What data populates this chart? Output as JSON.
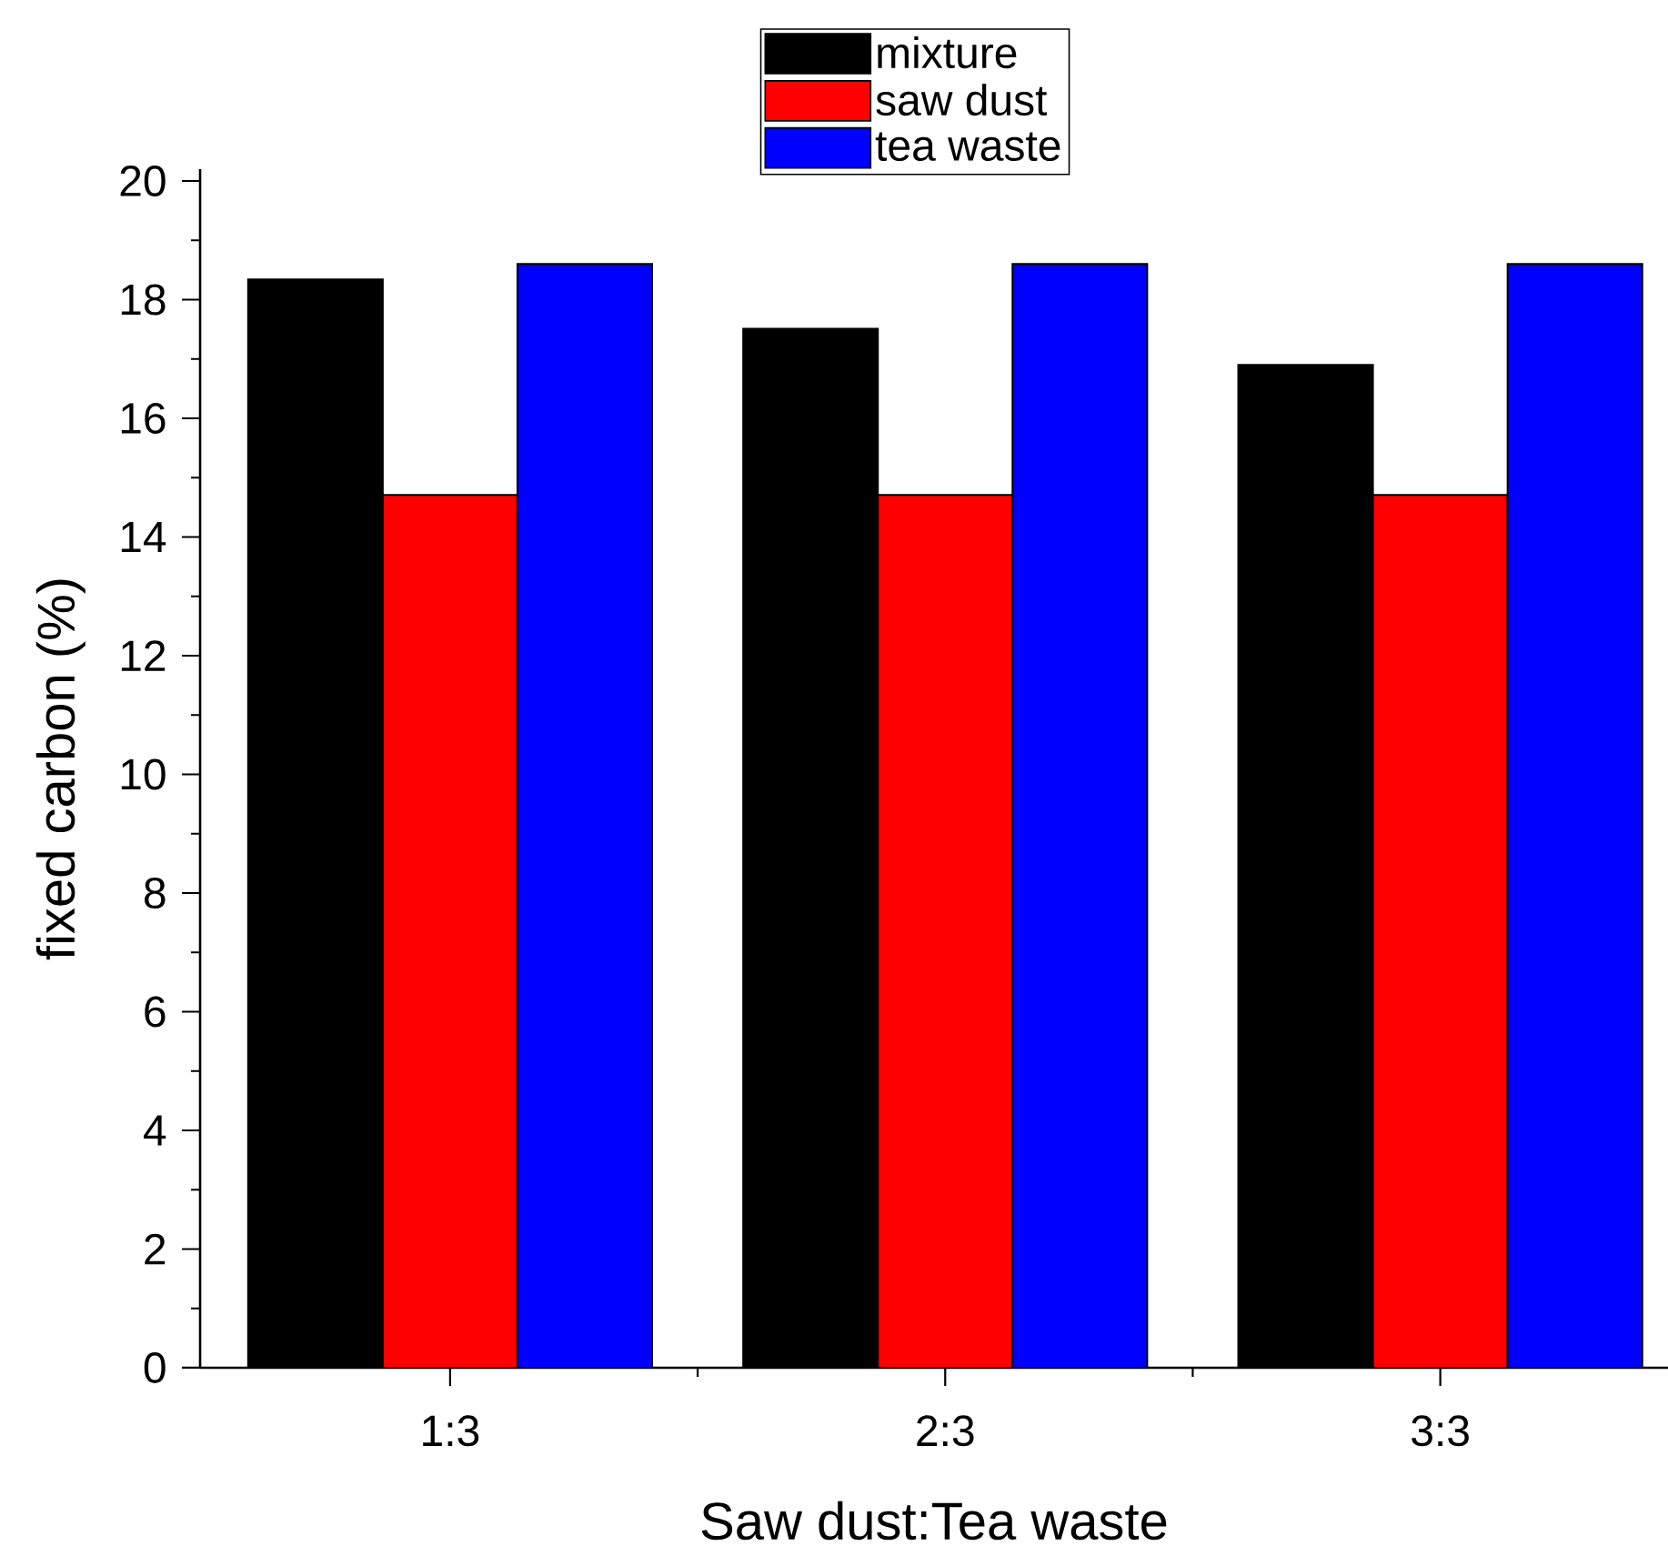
{
  "chart_data": {
    "type": "bar",
    "xlabel": "Saw dust:Tea waste",
    "ylabel": "fixed carbon (%)",
    "categories": [
      "1:3",
      "2:3",
      "3:3"
    ],
    "series": [
      {
        "name": "mixture",
        "color": "#000000",
        "values": [
          18.34,
          17.51,
          16.9
        ]
      },
      {
        "name": "saw dust",
        "color": "#ff0000",
        "values": [
          14.71,
          14.71,
          14.71
        ]
      },
      {
        "name": "tea waste",
        "color": "#0000ff",
        "values": [
          18.6,
          18.6,
          18.6
        ]
      }
    ],
    "ylim": [
      0,
      20.2
    ],
    "yticks": [
      0,
      2,
      4,
      6,
      8,
      10,
      12,
      14,
      16,
      18,
      20
    ],
    "legend": "top"
  }
}
